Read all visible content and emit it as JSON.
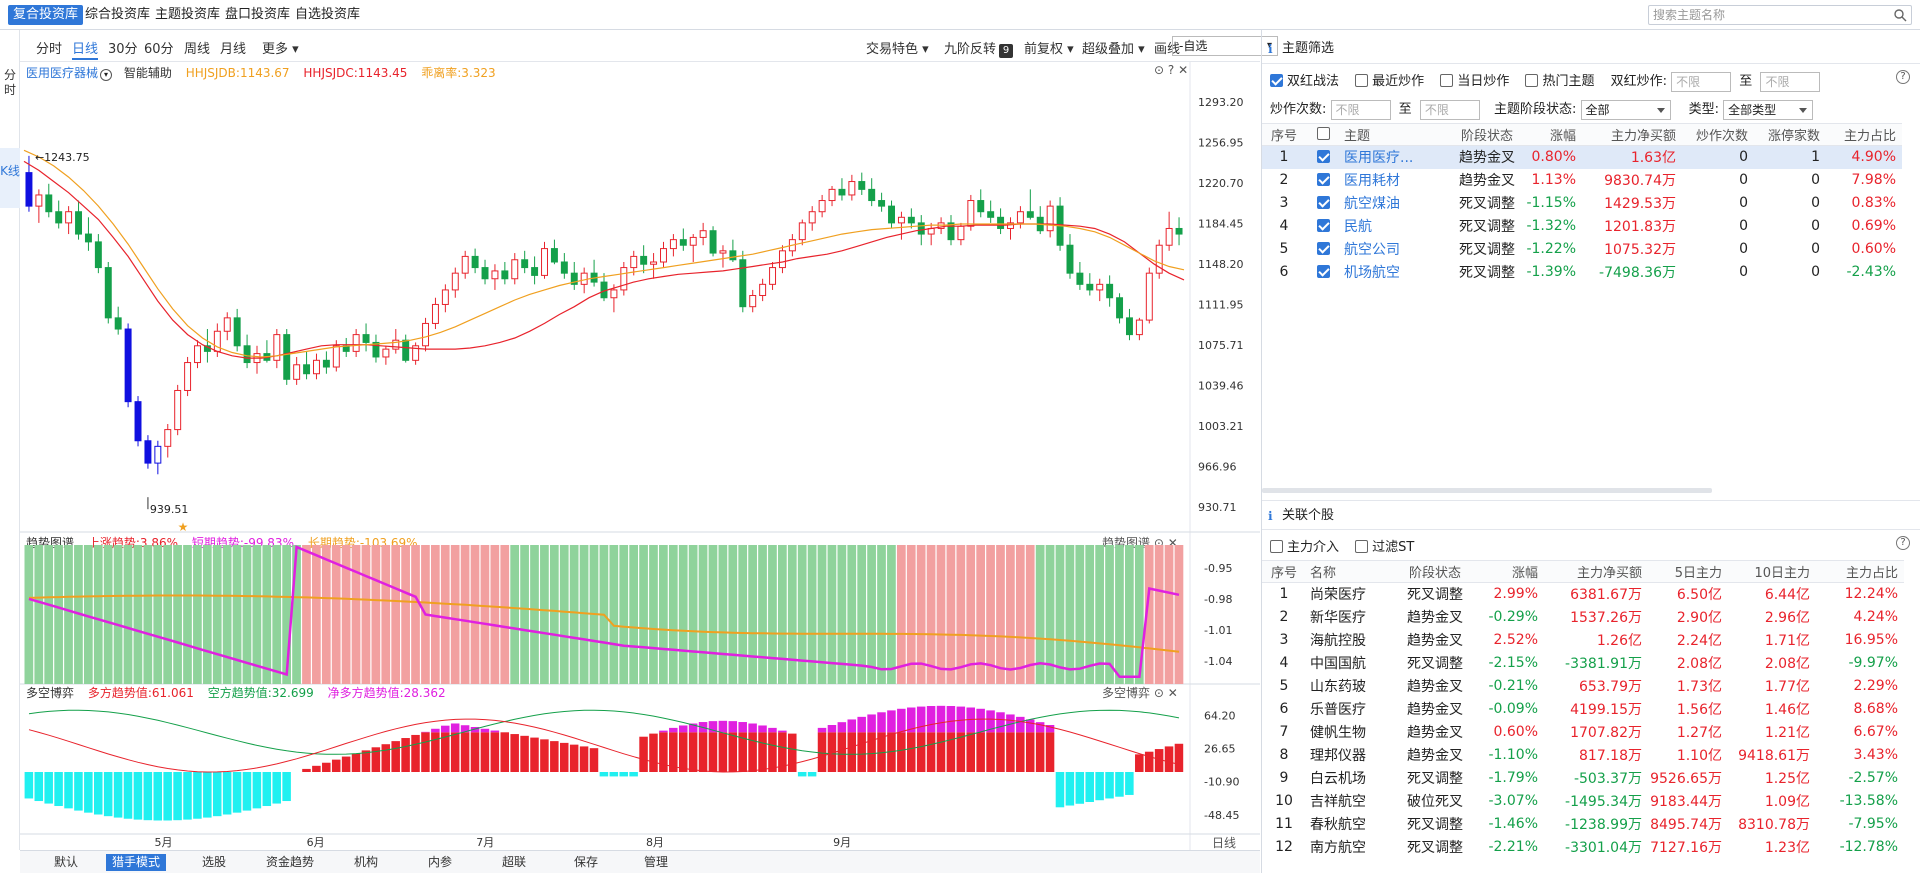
{
  "nav": {
    "tabs": [
      "复合投资库",
      "综合投资库",
      "主题投资库",
      "盘口投资库",
      "自选投资库"
    ],
    "active": 0,
    "search_placeholder": "搜索主题名称"
  },
  "leftbar": {
    "top": "分时",
    "active": "K线"
  },
  "toolbar": {
    "periods": [
      "分时",
      "日线",
      "30分",
      "60分",
      "周线",
      "月线",
      "更多"
    ],
    "active_period": 1,
    "right_items": [
      "交易特色",
      "九阶反转",
      "前复权",
      "超级叠加",
      "画线"
    ],
    "nine_badge": "9",
    "self_select": "-自选"
  },
  "kline": {
    "stock_name": "医用医疗器械",
    "assist": "智能辅助",
    "hhjsjdb": "HHJSJDB:1143.67",
    "hhjsjdc": "HHJSJDC:1143.45",
    "deviation": "乖离率:3.323",
    "y_ticks": [
      1293.2,
      1256.95,
      1220.7,
      1184.45,
      1148.2,
      1111.95,
      1075.71,
      1039.46,
      1003.21,
      966.96,
      930.71
    ],
    "high_label": "1243.75",
    "low_label": "939.51",
    "candles": [
      [
        1230,
        1245,
        1195,
        1200
      ],
      [
        1200,
        1215,
        1185,
        1210
      ],
      [
        1210,
        1220,
        1190,
        1195
      ],
      [
        1195,
        1205,
        1180,
        1185
      ],
      [
        1185,
        1200,
        1175,
        1195
      ],
      [
        1195,
        1205,
        1170,
        1175
      ],
      [
        1175,
        1190,
        1160,
        1168
      ],
      [
        1168,
        1175,
        1140,
        1145
      ],
      [
        1145,
        1150,
        1095,
        1100
      ],
      [
        1100,
        1110,
        1085,
        1090
      ],
      [
        1090,
        1095,
        1020,
        1025
      ],
      [
        1025,
        1030,
        985,
        990
      ],
      [
        990,
        995,
        965,
        970
      ],
      [
        970,
        990,
        960,
        985
      ],
      [
        985,
        1005,
        975,
        1000
      ],
      [
        1000,
        1040,
        995,
        1035
      ],
      [
        1035,
        1065,
        1030,
        1060
      ],
      [
        1060,
        1080,
        1055,
        1075
      ],
      [
        1075,
        1090,
        1060,
        1070
      ],
      [
        1070,
        1095,
        1065,
        1088
      ],
      [
        1088,
        1105,
        1080,
        1100
      ],
      [
        1100,
        1108,
        1070,
        1075
      ],
      [
        1075,
        1085,
        1055,
        1060
      ],
      [
        1060,
        1075,
        1050,
        1068
      ],
      [
        1068,
        1080,
        1060,
        1062
      ],
      [
        1062,
        1090,
        1055,
        1085
      ],
      [
        1085,
        1090,
        1040,
        1045
      ],
      [
        1045,
        1065,
        1040,
        1058
      ],
      [
        1058,
        1070,
        1045,
        1050
      ],
      [
        1050,
        1068,
        1045,
        1062
      ],
      [
        1062,
        1070,
        1050,
        1056
      ],
      [
        1056,
        1080,
        1052,
        1075
      ],
      [
        1075,
        1082,
        1065,
        1070
      ],
      [
        1070,
        1090,
        1065,
        1085
      ],
      [
        1085,
        1095,
        1070,
        1078
      ],
      [
        1078,
        1085,
        1060,
        1065
      ],
      [
        1065,
        1075,
        1058,
        1072
      ],
      [
        1072,
        1090,
        1068,
        1080
      ],
      [
        1080,
        1085,
        1060,
        1062
      ],
      [
        1062,
        1078,
        1058,
        1075
      ],
      [
        1075,
        1100,
        1070,
        1095
      ],
      [
        1095,
        1118,
        1090,
        1112
      ],
      [
        1112,
        1130,
        1105,
        1125
      ],
      [
        1125,
        1145,
        1118,
        1140
      ],
      [
        1140,
        1160,
        1135,
        1155
      ],
      [
        1155,
        1162,
        1140,
        1145
      ],
      [
        1145,
        1152,
        1130,
        1135
      ],
      [
        1135,
        1148,
        1125,
        1142
      ],
      [
        1142,
        1150,
        1130,
        1135
      ],
      [
        1135,
        1158,
        1130,
        1152
      ],
      [
        1152,
        1160,
        1140,
        1145
      ],
      [
        1145,
        1155,
        1130,
        1138
      ],
      [
        1138,
        1168,
        1135,
        1162
      ],
      [
        1162,
        1170,
        1148,
        1150
      ],
      [
        1150,
        1158,
        1135,
        1140
      ],
      [
        1140,
        1150,
        1125,
        1130
      ],
      [
        1130,
        1145,
        1122,
        1140
      ],
      [
        1140,
        1152,
        1128,
        1132
      ],
      [
        1132,
        1140,
        1115,
        1118
      ],
      [
        1118,
        1130,
        1105,
        1125
      ],
      [
        1125,
        1150,
        1120,
        1145
      ],
      [
        1145,
        1160,
        1138,
        1155
      ],
      [
        1155,
        1165,
        1140,
        1148
      ],
      [
        1148,
        1158,
        1135,
        1150
      ],
      [
        1150,
        1168,
        1145,
        1162
      ],
      [
        1162,
        1175,
        1155,
        1170
      ],
      [
        1170,
        1180,
        1160,
        1165
      ],
      [
        1165,
        1175,
        1150,
        1172
      ],
      [
        1172,
        1185,
        1165,
        1178
      ],
      [
        1178,
        1182,
        1155,
        1158
      ],
      [
        1158,
        1165,
        1145,
        1160
      ],
      [
        1160,
        1170,
        1150,
        1152
      ],
      [
        1152,
        1160,
        1105,
        1110
      ],
      [
        1110,
        1125,
        1105,
        1120
      ],
      [
        1120,
        1135,
        1115,
        1130
      ],
      [
        1130,
        1150,
        1125,
        1145
      ],
      [
        1145,
        1165,
        1140,
        1160
      ],
      [
        1160,
        1175,
        1155,
        1170
      ],
      [
        1170,
        1188,
        1165,
        1185
      ],
      [
        1185,
        1200,
        1178,
        1195
      ],
      [
        1195,
        1210,
        1190,
        1205
      ],
      [
        1205,
        1218,
        1200,
        1215
      ],
      [
        1215,
        1225,
        1205,
        1210
      ],
      [
        1210,
        1228,
        1205,
        1222
      ],
      [
        1222,
        1230,
        1210,
        1215
      ],
      [
        1215,
        1225,
        1200,
        1205
      ],
      [
        1205,
        1212,
        1195,
        1200
      ],
      [
        1200,
        1205,
        1180,
        1185
      ],
      [
        1185,
        1195,
        1170,
        1190
      ],
      [
        1190,
        1198,
        1180,
        1185
      ],
      [
        1185,
        1192,
        1165,
        1175
      ],
      [
        1175,
        1185,
        1165,
        1180
      ],
      [
        1180,
        1190,
        1175,
        1185
      ],
      [
        1185,
        1192,
        1165,
        1170
      ],
      [
        1170,
        1185,
        1165,
        1182
      ],
      [
        1182,
        1210,
        1178,
        1205
      ],
      [
        1205,
        1215,
        1190,
        1195
      ],
      [
        1195,
        1205,
        1185,
        1190
      ],
      [
        1190,
        1198,
        1175,
        1180
      ],
      [
        1180,
        1190,
        1170,
        1185
      ],
      [
        1185,
        1200,
        1180,
        1195
      ],
      [
        1195,
        1215,
        1188,
        1190
      ],
      [
        1190,
        1200,
        1175,
        1178
      ],
      [
        1178,
        1205,
        1172,
        1200
      ],
      [
        1200,
        1208,
        1160,
        1165
      ],
      [
        1165,
        1175,
        1135,
        1140
      ],
      [
        1140,
        1150,
        1125,
        1130
      ],
      [
        1130,
        1140,
        1120,
        1125
      ],
      [
        1125,
        1135,
        1115,
        1130
      ],
      [
        1130,
        1138,
        1110,
        1118
      ],
      [
        1118,
        1122,
        1095,
        1100
      ],
      [
        1100,
        1108,
        1080,
        1085
      ],
      [
        1085,
        1100,
        1080,
        1098
      ],
      [
        1098,
        1145,
        1095,
        1140
      ],
      [
        1140,
        1170,
        1135,
        1165
      ],
      [
        1165,
        1195,
        1160,
        1180
      ],
      [
        1180,
        1190,
        1165,
        1175
      ]
    ],
    "candle_colors": {
      "down_blue_indices": [
        0,
        10,
        11,
        12,
        13
      ]
    },
    "ma_fast": [
      1240,
      1232,
      1222,
      1212,
      1200,
      1188,
      1172,
      1155,
      1135,
      1115,
      1098,
      1085,
      1076,
      1070,
      1066,
      1064,
      1064,
      1066,
      1069,
      1072,
      1075,
      1076,
      1076,
      1076,
      1075,
      1074,
      1073,
      1072,
      1072,
      1072,
      1073,
      1075,
      1078,
      1082,
      1088,
      1095,
      1103,
      1110,
      1118,
      1124,
      1128,
      1132,
      1135,
      1137,
      1139,
      1140,
      1141,
      1142,
      1144,
      1146,
      1148,
      1150,
      1153,
      1155,
      1157,
      1160,
      1164,
      1168,
      1172,
      1175,
      1178,
      1180,
      1182,
      1182,
      1183,
      1183,
      1183,
      1184,
      1184,
      1184,
      1183,
      1182,
      1180,
      1175,
      1168,
      1158,
      1148,
      1140,
      1134
    ],
    "ma_slow": [
      1250,
      1244,
      1236,
      1226,
      1214,
      1200,
      1184,
      1166,
      1146,
      1126,
      1108,
      1093,
      1082,
      1074,
      1069,
      1066,
      1065,
      1066,
      1068,
      1070,
      1072,
      1074,
      1075,
      1076,
      1077,
      1078,
      1080,
      1083,
      1087,
      1092,
      1098,
      1104,
      1110,
      1116,
      1121,
      1125,
      1129,
      1132,
      1135,
      1137,
      1139,
      1141,
      1143,
      1145,
      1147,
      1149,
      1151,
      1153,
      1155,
      1157,
      1160,
      1163,
      1166,
      1169,
      1172,
      1175,
      1177,
      1179,
      1180,
      1181,
      1182,
      1183,
      1183,
      1184,
      1184,
      1184,
      1184,
      1184,
      1184,
      1183,
      1182,
      1180,
      1177,
      1172,
      1165,
      1158,
      1151,
      1146,
      1143
    ],
    "month_ticks": [
      "5月",
      "6月",
      "7月",
      "8月",
      "9月"
    ]
  },
  "trend_panel": {
    "name": "趋势图谱",
    "up_trend": "上涨趋势:3.86%",
    "short_trend": "短期趋势:-99.83%",
    "long_trend": "长期趋势:-103.69%",
    "y_ticks": [
      -0.95,
      -0.98,
      -1.01,
      -1.04
    ]
  },
  "duokong_panel": {
    "name": "多空博弈",
    "long_val": "多方趋势值:61.061",
    "short_val": "空方趋势值:32.699",
    "net_val": "净多方趋势值:28.362",
    "y_ticks": [
      64.2,
      26.65,
      -10.9,
      -48.45
    ]
  },
  "bottom_tabs": [
    "默认",
    "猎手模式",
    "选股",
    "资金趋势",
    "机构",
    "内参",
    "超联",
    "保存",
    "管理"
  ],
  "bottom_active": 1,
  "bottom_right": "日线",
  "theme_filter": {
    "title": "主题筛选",
    "checks": [
      {
        "label": "双红战法",
        "on": true
      },
      {
        "label": "最近炒作",
        "on": false
      },
      {
        "label": "当日炒作",
        "on": false
      },
      {
        "label": "热门主题",
        "on": false
      }
    ],
    "double_red_label": "双红炒作:",
    "limit_ph": "不限",
    "to": "至",
    "hype_count_label": "炒作次数:",
    "stage_label": "主题阶段状态:",
    "stage_value": "全部",
    "type_label": "类型:",
    "type_value": "全部类型",
    "headers": [
      "序号",
      "",
      "主题",
      "阶段状态",
      "涨幅",
      "主力净买额",
      "炒作次数",
      "涨停家数",
      "主力占比"
    ],
    "rows": [
      {
        "no": "1",
        "name": "医用医疗...",
        "stage": "趋势金叉",
        "chg": "0.80%",
        "net": "1.63亿",
        "times": "0",
        "limit": "1",
        "ratio": "4.90%"
      },
      {
        "no": "2",
        "name": "医用耗材",
        "stage": "趋势金叉",
        "chg": "1.13%",
        "net": "9830.74万",
        "times": "0",
        "limit": "0",
        "ratio": "7.98%"
      },
      {
        "no": "3",
        "name": "航空煤油",
        "stage": "死叉调整",
        "chg": "-1.15%",
        "net": "1429.53万",
        "times": "0",
        "limit": "0",
        "ratio": "0.83%"
      },
      {
        "no": "4",
        "name": "民航",
        "stage": "死叉调整",
        "chg": "-1.32%",
        "net": "1201.83万",
        "times": "0",
        "limit": "0",
        "ratio": "0.69%"
      },
      {
        "no": "5",
        "name": "航空公司",
        "stage": "死叉调整",
        "chg": "-1.22%",
        "net": "1075.32万",
        "times": "0",
        "limit": "0",
        "ratio": "0.60%"
      },
      {
        "no": "6",
        "name": "机场航空",
        "stage": "死叉调整",
        "chg": "-1.39%",
        "net": "-7498.36万",
        "times": "0",
        "limit": "0",
        "ratio": "-2.43%"
      }
    ]
  },
  "related": {
    "title": "关联个股",
    "checks": [
      {
        "label": "主力介入",
        "on": false
      },
      {
        "label": "过滤ST",
        "on": false
      }
    ],
    "headers": [
      "序号",
      "名称",
      "阶段状态",
      "涨幅",
      "主力净买额",
      "5日主力",
      "10日主力",
      "主力占比"
    ],
    "rows": [
      {
        "no": "1",
        "name": "尚荣医疗",
        "stage": "死叉调整",
        "chg": "2.99%",
        "net": "6381.67万",
        "d5": "6.50亿",
        "d10": "6.44亿",
        "ratio": "12.24%"
      },
      {
        "no": "2",
        "name": "新华医疗",
        "stage": "趋势金叉",
        "chg": "-0.29%",
        "net": "1537.26万",
        "d5": "2.90亿",
        "d10": "2.96亿",
        "ratio": "4.24%"
      },
      {
        "no": "3",
        "name": "海航控股",
        "stage": "趋势金叉",
        "chg": "2.52%",
        "net": "1.26亿",
        "d5": "2.24亿",
        "d10": "1.71亿",
        "ratio": "16.95%"
      },
      {
        "no": "4",
        "name": "中国国航",
        "stage": "死叉调整",
        "chg": "-2.15%",
        "net": "-3381.91万",
        "d5": "2.08亿",
        "d10": "2.08亿",
        "ratio": "-9.97%"
      },
      {
        "no": "5",
        "name": "山东药玻",
        "stage": "趋势金叉",
        "chg": "-0.21%",
        "net": "653.79万",
        "d5": "1.73亿",
        "d10": "1.77亿",
        "ratio": "2.29%"
      },
      {
        "no": "6",
        "name": "乐普医疗",
        "stage": "趋势金叉",
        "chg": "-0.09%",
        "net": "4199.15万",
        "d5": "1.56亿",
        "d10": "1.46亿",
        "ratio": "8.68%"
      },
      {
        "no": "7",
        "name": "健帆生物",
        "stage": "趋势金叉",
        "chg": "0.60%",
        "net": "1707.82万",
        "d5": "1.27亿",
        "d10": "1.21亿",
        "ratio": "6.67%"
      },
      {
        "no": "8",
        "name": "理邦仪器",
        "stage": "趋势金叉",
        "chg": "-1.10%",
        "net": "817.18万",
        "d5": "1.10亿",
        "d10": "9418.61万",
        "ratio": "3.43%"
      },
      {
        "no": "9",
        "name": "白云机场",
        "stage": "死叉调整",
        "chg": "-1.79%",
        "net": "-503.37万",
        "d5": "9526.65万",
        "d10": "1.25亿",
        "ratio": "-2.57%"
      },
      {
        "no": "10",
        "name": "吉祥航空",
        "stage": "破位死叉",
        "chg": "-3.07%",
        "net": "-1495.34万",
        "d5": "9183.44万",
        "d10": "1.09亿",
        "ratio": "-13.58%"
      },
      {
        "no": "11",
        "name": "春秋航空",
        "stage": "死叉调整",
        "chg": "-1.46%",
        "net": "-1238.99万",
        "d5": "8495.74万",
        "d10": "8310.78万",
        "ratio": "-7.95%"
      },
      {
        "no": "12",
        "name": "南方航空",
        "stage": "死叉调整",
        "chg": "-2.21%",
        "net": "-3301.04万",
        "d5": "7127.16万",
        "d10": "1.23亿",
        "ratio": "-12.78%"
      }
    ]
  },
  "colors": {
    "up": "#e8232c",
    "down": "#14a04a",
    "down_blue": "#1010e0",
    "accent": "#2f77d8",
    "ma_fast": "#e8232c",
    "ma_slow": "#f0a020",
    "magenta": "#e020e0",
    "cyan": "#20f0f0"
  }
}
